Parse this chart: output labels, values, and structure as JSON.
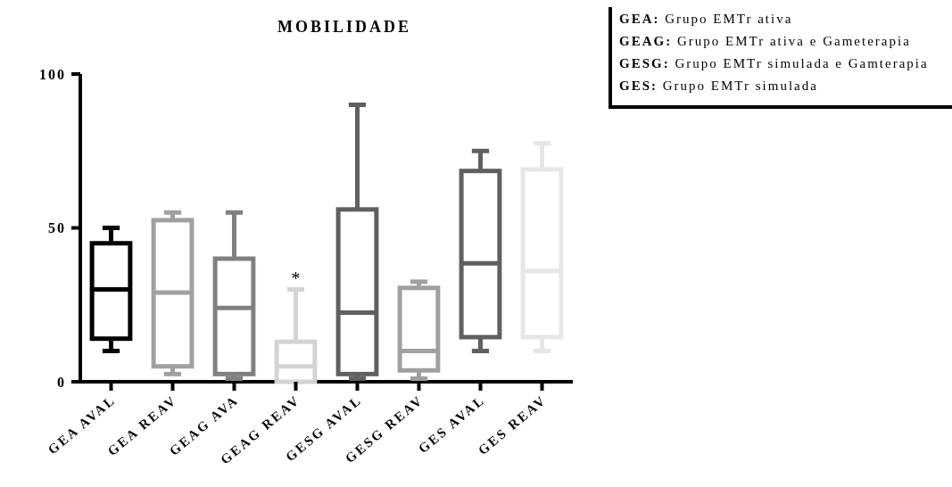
{
  "chart_data": {
    "type": "box",
    "title": "MOBILIDADE",
    "categories": [
      "GEA AVAL",
      "GEA REAV",
      "GEAG AVA",
      "GEAG REAV",
      "GESG AVAL",
      "GESG REAV",
      "GES AVAL",
      "GES REAV"
    ],
    "colors": [
      "#000000",
      "#a0a0a4",
      "#808080",
      "#d3d3d3",
      "#606060",
      "#a0a0a4",
      "#606060",
      "#e6e6e6"
    ],
    "boxes": [
      {
        "low": 10,
        "q1": 14,
        "median": 30,
        "q3": 45,
        "high": 50
      },
      {
        "low": 2.5,
        "q1": 5,
        "median": 29,
        "q3": 52.5,
        "high": 55
      },
      {
        "low": 1,
        "q1": 2.5,
        "median": 24,
        "q3": 40,
        "high": 55
      },
      {
        "low": 0,
        "q1": 0,
        "median": 5,
        "q3": 13,
        "high": 30
      },
      {
        "low": 1,
        "q1": 2.5,
        "median": 22.5,
        "q3": 56,
        "high": 90
      },
      {
        "low": 1,
        "q1": 3.7,
        "median": 10,
        "q3": 30.5,
        "high": 32.5
      },
      {
        "low": 10,
        "q1": 14.5,
        "median": 38.5,
        "q3": 68.5,
        "high": 75
      },
      {
        "low": 10,
        "q1": 14.5,
        "median": 36,
        "q3": 69,
        "high": 77.5
      }
    ],
    "ylim": [
      0,
      100
    ],
    "yticks": [
      0,
      50,
      100
    ],
    "grid": false,
    "annotations": [
      {
        "text": "*",
        "x": "GEAG REAV",
        "y": 30
      },
      "GEA: Grupo EMTr ativa",
      "GEAG: Grupo EMTr ativa e Gameterapia",
      "GESG: Grupo EMTr simulada e Gamterapia",
      "GES: Grupo EMTr simulada"
    ]
  }
}
